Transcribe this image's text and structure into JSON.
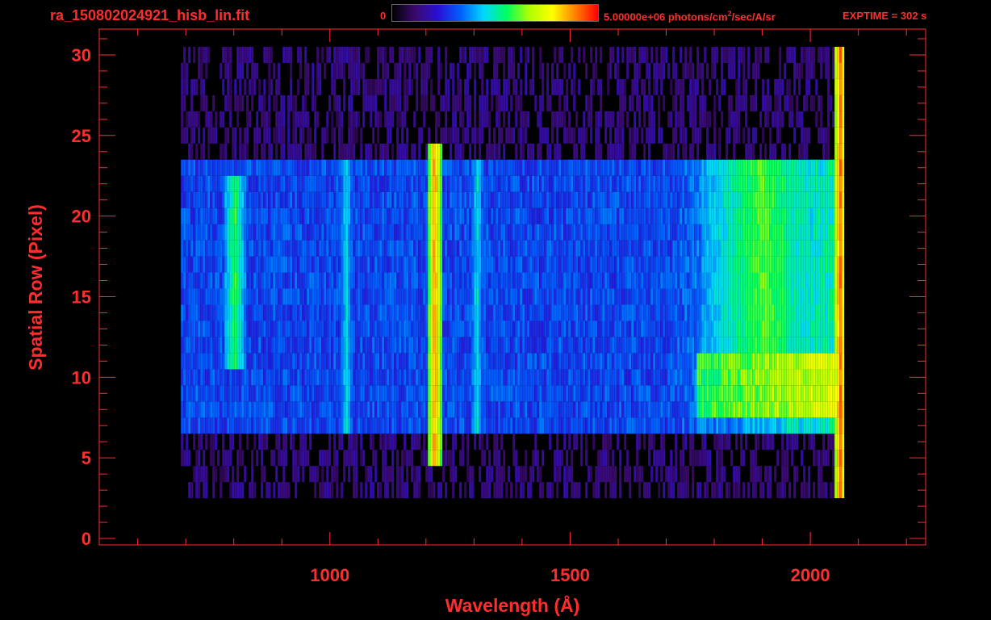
{
  "header": {
    "file_name": "ra_150802024921_hisb_lin.fit",
    "colorbar_min": "0",
    "colorbar_max": "5.00000e+06",
    "colorbar_units_pre": " photons/cm",
    "colorbar_units_exp": "2",
    "colorbar_units_post": "/sec/A/sr",
    "exptime": "EXPTIME = 302 s"
  },
  "colors": {
    "axis": "#ff2d2d",
    "background": "#000000",
    "colormap": [
      "#000000",
      "#3a0a6e",
      "#2a0fd6",
      "#0060ff",
      "#00d8ff",
      "#00ff60",
      "#b0ff00",
      "#ffff00",
      "#ff8000",
      "#ff0000"
    ]
  },
  "chart_data": {
    "type": "heatmap",
    "title": "ra_150802024921_hisb_lin.fit",
    "xlabel": "Wavelength (Å)",
    "ylabel": "Spatial Row (Pixel)",
    "xlim": [
      520,
      2240
    ],
    "ylim": [
      -0.4,
      31.6
    ],
    "x_ticks": [
      1000,
      1500,
      2000
    ],
    "y_ticks": [
      0,
      5,
      10,
      15,
      20,
      25,
      30
    ],
    "color_range": [
      0,
      5000000
    ],
    "color_units": "photons/cm^2/sec/A/sr",
    "exptime_s": 302,
    "wavelength_range": [
      690,
      2070
    ],
    "rows": 31,
    "features": [
      {
        "wavelength": 1216,
        "row_range": [
          5,
          24
        ],
        "level": 0.92
      },
      {
        "wavelength": 1032,
        "row_range": [
          7,
          23
        ],
        "level": 0.5
      },
      {
        "wavelength": 1304,
        "row_range": [
          7,
          23
        ],
        "level": 0.5
      },
      {
        "wavelength": 800,
        "row_range": [
          11,
          22
        ],
        "level": 0.62
      },
      {
        "wavelength": 1900,
        "row_range": [
          8,
          23
        ],
        "level": 0.65
      },
      {
        "wavelength": 2060,
        "row_range": [
          3,
          30
        ],
        "level": 0.95
      }
    ]
  }
}
